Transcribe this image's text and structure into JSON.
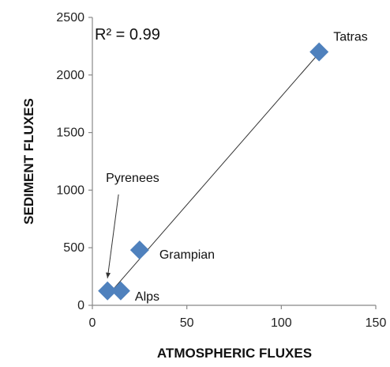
{
  "chart_data": {
    "type": "scatter",
    "xlabel": "ATMOSPHERIC FLUXES",
    "ylabel": "SEDIMENT FLUXES",
    "xlim": [
      0,
      150
    ],
    "ylim": [
      0,
      2500
    ],
    "xticks": [
      0,
      50,
      100,
      150
    ],
    "yticks": [
      0,
      500,
      1000,
      1500,
      2000,
      2500
    ],
    "grid": false,
    "marker": "diamond",
    "marker_color": "#4f81bd",
    "annotation": "R² = 0.99",
    "points": [
      {
        "label": "Tatras",
        "x": 120,
        "y": 2200
      },
      {
        "label": "Grampian",
        "x": 25,
        "y": 480
      },
      {
        "label": "Alps",
        "x": 15,
        "y": 125
      },
      {
        "label": "Pyrenees",
        "x": 8,
        "y": 125
      }
    ],
    "trendline": {
      "x": [
        10,
        120
      ],
      "y": [
        120,
        2190
      ]
    }
  }
}
